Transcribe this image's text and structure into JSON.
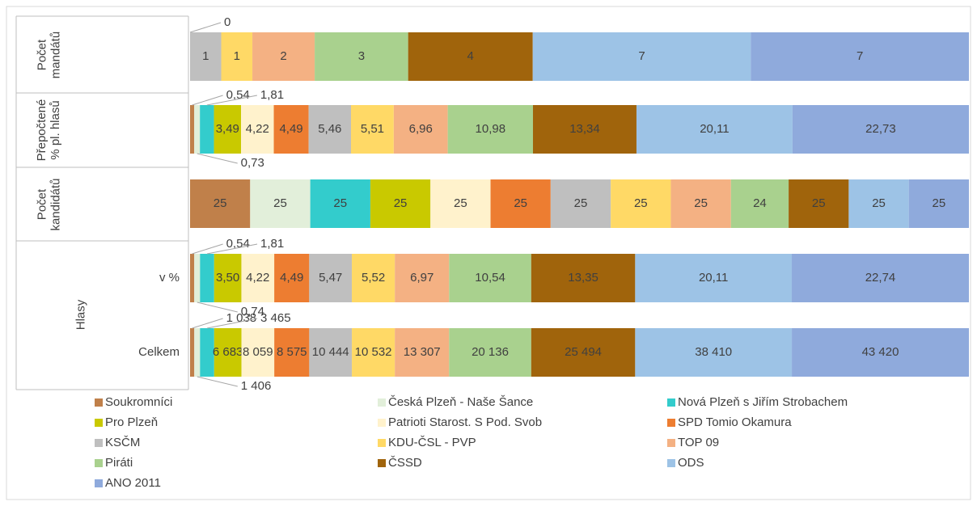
{
  "chart_data": {
    "type": "bar",
    "orientation": "horizontal",
    "stacking": "percent",
    "category_groups": [
      {
        "label": "Počet mandátů"
      },
      {
        "label": "Přepočtené % pl. hlasů"
      },
      {
        "label": "Počet kandidátů"
      },
      {
        "label": "Hlasy",
        "categories": [
          "v %",
          "Celkem"
        ]
      }
    ],
    "series": [
      {
        "name": "Soukromníci",
        "color": "#c0804a",
        "values": [
          null,
          0.54,
          25,
          0.54,
          1038
        ],
        "value_labels": [
          null,
          "0,54",
          "25",
          "0,54",
          "1 038"
        ]
      },
      {
        "name": "Česká Plzeň - Naše Šance",
        "color": "#e2efda",
        "values": [
          null,
          0.73,
          25,
          0.74,
          1406
        ],
        "value_labels": [
          null,
          "0,73",
          "25",
          "0,74",
          "1 406"
        ]
      },
      {
        "name": "Nová Plzeň s Jiřím Strobachem",
        "color": "#33cccc",
        "values": [
          null,
          1.81,
          25,
          1.81,
          3465
        ],
        "value_labels": [
          null,
          "1,81",
          "25",
          "1,81",
          "3 465"
        ]
      },
      {
        "name": "Pro Plzeň",
        "color": "#c9c900",
        "values": [
          null,
          3.49,
          25,
          3.5,
          6683
        ],
        "value_labels": [
          null,
          "3,49",
          "25",
          "3,50",
          "6 683"
        ]
      },
      {
        "name": "Patrioti Starost. S Pod. Svob",
        "color": "#fff2cc",
        "values": [
          null,
          4.22,
          25,
          4.22,
          8059
        ],
        "value_labels": [
          null,
          "4,22",
          "25",
          "4,22",
          "8 059"
        ]
      },
      {
        "name": "SPD Tomio Okamura",
        "color": "#ed7d31",
        "values": [
          0,
          4.49,
          25,
          4.49,
          8575
        ],
        "value_labels": [
          "0",
          "4,49",
          "25",
          "4,49",
          "8 575"
        ]
      },
      {
        "name": "KSČM",
        "color": "#bfbfbf",
        "values": [
          1,
          5.46,
          25,
          5.47,
          10444
        ],
        "value_labels": [
          "1",
          "5,46",
          "25",
          "5,47",
          "10 444"
        ]
      },
      {
        "name": "KDU-ČSL - PVP",
        "color": "#ffd966",
        "values": [
          1,
          5.51,
          25,
          5.52,
          10532
        ],
        "value_labels": [
          "1",
          "5,51",
          "25",
          "5,52",
          "10 532"
        ]
      },
      {
        "name": "TOP 09",
        "color": "#f4b183",
        "values": [
          2,
          6.96,
          25,
          6.97,
          13307
        ],
        "value_labels": [
          "2",
          "6,96",
          "25",
          "6,97",
          "13 307"
        ]
      },
      {
        "name": "Piráti",
        "color": "#a9d18e",
        "values": [
          3,
          10.98,
          24,
          10.54,
          20136
        ],
        "value_labels": [
          "3",
          "10,98",
          "24",
          "10,54",
          "20 136"
        ]
      },
      {
        "name": "ČSSD",
        "color": "#a0640c",
        "values": [
          4,
          13.34,
          25,
          13.35,
          25494
        ],
        "value_labels": [
          "4",
          "13,34",
          "25",
          "13,35",
          "25 494"
        ]
      },
      {
        "name": "ODS",
        "color": "#9dc3e6",
        "values": [
          7,
          20.11,
          25,
          20.11,
          38410
        ],
        "value_labels": [
          "7",
          "20,11",
          "25",
          "20,11",
          "38 410"
        ]
      },
      {
        "name": "ANO 2011",
        "color": "#8faadc",
        "values": [
          7,
          22.73,
          25,
          22.74,
          43420
        ],
        "value_labels": [
          "7",
          "22,73",
          "25",
          "22,74",
          "43 420"
        ]
      }
    ],
    "legend": "bottom"
  }
}
